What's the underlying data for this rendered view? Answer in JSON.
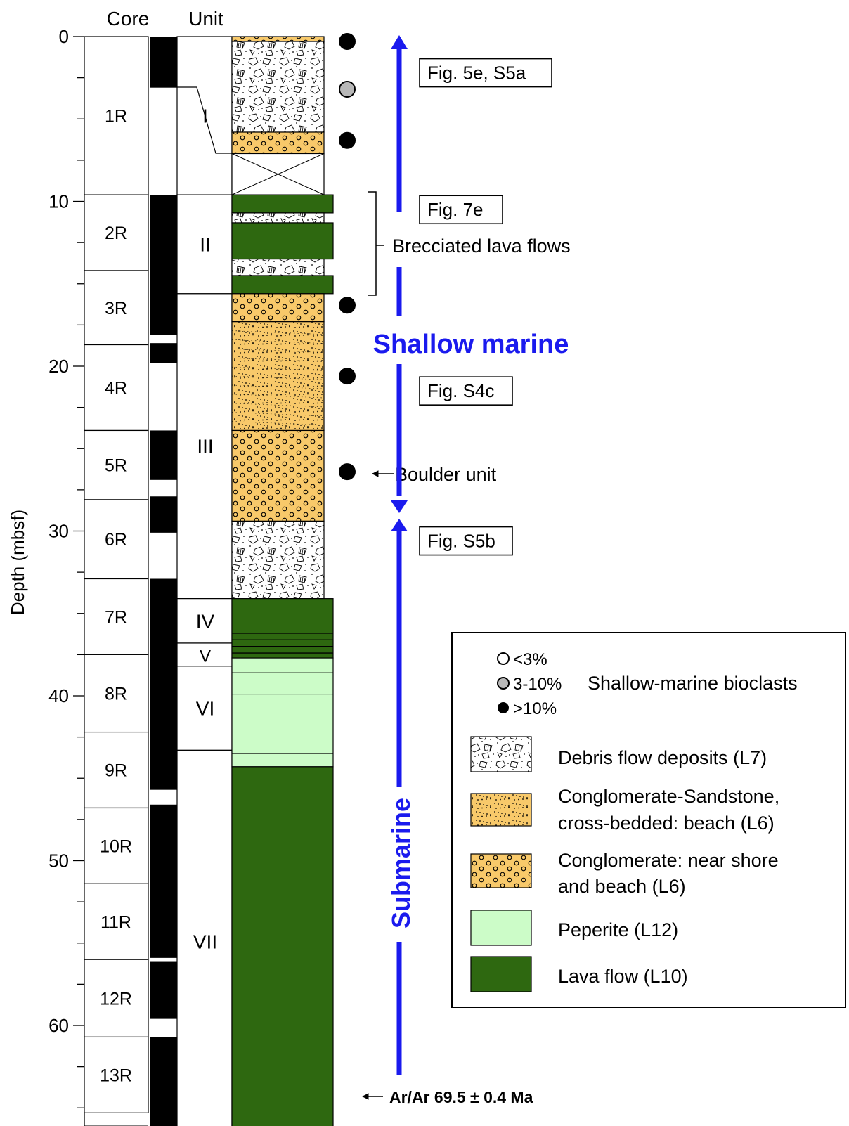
{
  "headers": {
    "core": "Core",
    "unit": "Unit"
  },
  "axis": {
    "label": "Depth (mbsf)",
    "ticks": [
      "0",
      "10",
      "20",
      "30",
      "40",
      "50",
      "60"
    ],
    "range": [
      0,
      66.5
    ],
    "minor_step": 2.5
  },
  "cores": [
    {
      "name": "1R",
      "top": 0,
      "bottom": 9.6
    },
    {
      "name": "2R",
      "top": 9.6,
      "bottom": 14.2
    },
    {
      "name": "3R",
      "top": 14.2,
      "bottom": 18.7
    },
    {
      "name": "4R",
      "top": 18.7,
      "bottom": 23.9
    },
    {
      "name": "5R",
      "top": 23.9,
      "bottom": 28.1
    },
    {
      "name": "6R",
      "top": 28.1,
      "bottom": 32.9
    },
    {
      "name": "7R",
      "top": 32.9,
      "bottom": 37.5
    },
    {
      "name": "8R",
      "top": 37.5,
      "bottom": 42.2
    },
    {
      "name": "9R",
      "top": 42.2,
      "bottom": 46.8
    },
    {
      "name": "10R",
      "top": 46.8,
      "bottom": 51.4
    },
    {
      "name": "11R",
      "top": 51.4,
      "bottom": 56.0
    },
    {
      "name": "12R",
      "top": 56.0,
      "bottom": 60.7
    },
    {
      "name": "13R",
      "top": 60.7,
      "bottom": 65.3
    }
  ],
  "recovery": [
    {
      "top": 0,
      "bottom": 3.1
    },
    {
      "top": 9.6,
      "bottom": 18.1
    },
    {
      "top": 18.6,
      "bottom": 19.8
    },
    {
      "top": 23.9,
      "bottom": 26.9
    },
    {
      "top": 27.9,
      "bottom": 30.1
    },
    {
      "top": 32.9,
      "bottom": 45.7
    },
    {
      "top": 46.6,
      "bottom": 55.9
    },
    {
      "top": 56.1,
      "bottom": 59.6
    },
    {
      "top": 60.7,
      "bottom": 66.5
    }
  ],
  "units": [
    {
      "name": "I",
      "top": 0,
      "bottom": 9.6
    },
    {
      "name": "II",
      "top": 9.6,
      "bottom": 15.6
    },
    {
      "name": "III",
      "top": 15.6,
      "bottom": 34.1
    },
    {
      "name": "IV",
      "top": 34.1,
      "bottom": 36.8
    },
    {
      "name": "V",
      "top": 36.8,
      "bottom": 38.2
    },
    {
      "name": "VI",
      "top": 38.2,
      "bottom": 43.3
    },
    {
      "name": "VII",
      "top": 43.3,
      "bottom": 66.5
    }
  ],
  "lithology": [
    {
      "type": "conglomerate",
      "top": 0,
      "bottom": 0.3
    },
    {
      "type": "debris",
      "top": 0.3,
      "bottom": 5.8
    },
    {
      "type": "conglomerate",
      "top": 5.8,
      "bottom": 7.1
    },
    {
      "type": "no_recovery",
      "top": 7.1,
      "bottom": 9.6
    },
    {
      "type": "lava",
      "top": 9.6,
      "bottom": 10.7
    },
    {
      "type": "debris",
      "top": 10.7,
      "bottom": 11.3
    },
    {
      "type": "lava",
      "top": 11.3,
      "bottom": 13.5
    },
    {
      "type": "debris",
      "top": 13.5,
      "bottom": 14.5
    },
    {
      "type": "lava",
      "top": 14.5,
      "bottom": 15.6
    },
    {
      "type": "conglomerate",
      "top": 15.6,
      "bottom": 17.3
    },
    {
      "type": "sandstone",
      "top": 17.3,
      "bottom": 23.9
    },
    {
      "type": "conglomerate",
      "top": 23.9,
      "bottom": 29.4
    },
    {
      "type": "debris",
      "top": 29.4,
      "bottom": 34.1
    },
    {
      "type": "lava",
      "top": 34.1,
      "bottom": 37.7
    },
    {
      "type": "peperite",
      "top": 37.7,
      "bottom": 44.3
    },
    {
      "type": "lava",
      "top": 44.3,
      "bottom": 66.5
    }
  ],
  "bioclasts": [
    {
      "depth": 0.3,
      "level": "high"
    },
    {
      "depth": 3.2,
      "level": "medium"
    },
    {
      "depth": 6.3,
      "level": "high"
    },
    {
      "depth": 16.3,
      "level": "high"
    },
    {
      "depth": 20.6,
      "level": "high"
    },
    {
      "depth": 26.4,
      "level": "high"
    }
  ],
  "figure_refs": [
    {
      "label": "Fig. 5e, S5a",
      "depth": 2.2
    },
    {
      "label": "Fig. 7e",
      "depth": 10.5
    },
    {
      "label": "Fig. S4c",
      "depth": 21.5
    },
    {
      "label": "Fig. S5b",
      "depth": 30.6
    }
  ],
  "annotations": {
    "brecciated": "Brecciated lava flows",
    "boulder": "Boulder unit",
    "arar": "Ar/Ar 69.5 ± 0.4 Ma"
  },
  "environments": {
    "shallow": "Shallow marine",
    "submarine": "Submarine",
    "color": "#1a1aee"
  },
  "legend": {
    "bioclast_levels": [
      "<3%",
      "3-10%",
      ">10%"
    ],
    "bioclast_title": "Shallow-marine bioclasts",
    "debris": "Debris flow deposits (L7)",
    "sandstone": [
      "Conglomerate-Sandstone,",
      "cross-bedded: beach (L6)"
    ],
    "conglomerate": [
      "Conglomerate: near shore",
      "and beach (L6)"
    ],
    "peperite": "Peperite (L12)",
    "lava": "Lava flow (L10)"
  },
  "colors": {
    "lava": "#2e6810",
    "sand": "#f8c96a",
    "peperite": "#ccfcc8",
    "bioclast_medium": "#b8b8b8",
    "black": "#000000"
  }
}
